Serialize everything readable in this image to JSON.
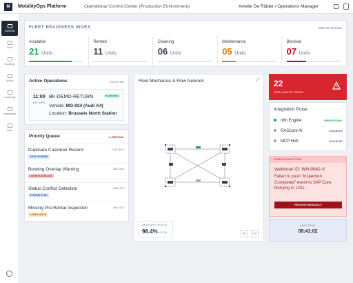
{
  "header": {
    "logo": "M",
    "title": "MobilityOps Platform",
    "subtitle": "Operational Control Center (Production Environment)",
    "user": "Amelie De Ridder / Operations Manager"
  },
  "sidebar": {
    "items": [
      "Overview",
      "Fleet",
      "Bookings",
      "Quality",
      "Knowledge",
      "Integrations",
      "Audit"
    ]
  },
  "fleet_readiness": {
    "title": "FLEET READINESS INDEX",
    "total": "Total: 50 Vehicles",
    "cards": [
      {
        "label": "Available",
        "count": "21",
        "unit": "Units",
        "color": "#18a058"
      },
      {
        "label": "Rented",
        "count": "11",
        "unit": "Units",
        "color": "#374151"
      },
      {
        "label": "Cleaning",
        "count": "06",
        "unit": "Units",
        "color": "#374151"
      },
      {
        "label": "Maintenance",
        "count": "05",
        "unit": "Units",
        "color": "#e07b00"
      },
      {
        "label": "Blocked",
        "count": "07",
        "unit": "Units",
        "color": "#d0021b"
      }
    ]
  },
  "active_operations": {
    "title": "Active Operations",
    "badge": "REALTIME",
    "time": "11:00",
    "kind": "RETURN",
    "booking": "BK-DEMO-RETURN",
    "status": "IN-BOUND",
    "vehicle_label": "Vehicle:",
    "vehicle": "MO-024 (Audi A4)",
    "location_label": "Location:",
    "location": "Brussels North Station"
  },
  "priority_queue": {
    "title": "Priority Queue",
    "badge": "● CRITICAL",
    "items": [
      {
        "title": "Duplicate Customer Record",
        "id": "CUS-9012",
        "tag": "DATA HYGIENE"
      },
      {
        "title": "Booking Overlap Warning",
        "id": "BKG-016",
        "tag": "LOGISTICS BLOCK"
      },
      {
        "title": "Status Conflict Detection",
        "id": "BKG-019",
        "tag": "SYSTEM SYNC"
      },
      {
        "title": "Missing Pre-Rental Inspection",
        "id": "BKG-001",
        "tag": "COMPLIANCE"
      }
    ]
  },
  "network": {
    "title": "Fleet Mechanics & Flow Network",
    "health_label": "NETWORK HEALTH",
    "health": "98.4%",
    "delta": "+0.2%"
  },
  "quality": {
    "count": "22",
    "label": "OPEN QUALITY ISSUES"
  },
  "integration_pulse": {
    "title": "Integration Pulse",
    "items": [
      {
        "name": "n8n Engine",
        "status": "OPERATIONAL"
      },
      {
        "name": "RAGcore AI",
        "status": "DISABLED"
      },
      {
        "name": "MCP Hub",
        "status": "DISABLED"
      }
    ]
  },
  "exception": {
    "label": "PENDING EXCEPTION",
    "webhook": "Webhook ID: WH-9942-X",
    "message": "Failed to push \"Inspection Completed\" event to SAP Core. Retrying in 120s...",
    "action": "RESOLVE MANUALLY"
  },
  "last_sync": {
    "label": "LAST SYNC",
    "time": "08:41:02"
  }
}
